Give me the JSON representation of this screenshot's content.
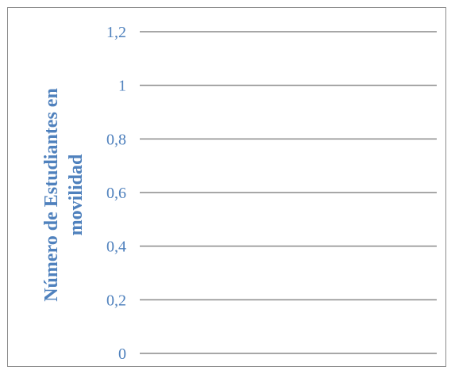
{
  "chart_data": {
    "type": "bar",
    "title": "",
    "xlabel": "",
    "ylabel_lines": [
      "Número de Estudiantes en",
      "movilidad"
    ],
    "ylim": [
      0,
      1.2
    ],
    "y_ticks": [
      0,
      0.2,
      0.4,
      0.6,
      0.8,
      1,
      1.2
    ],
    "y_tick_labels": [
      "0",
      "0,2",
      "0,4",
      "0,6",
      "0,8",
      "1",
      "1,2"
    ],
    "categories": [],
    "series": [],
    "grid": true,
    "legend": "none",
    "colors": {
      "text": "#4f81bd",
      "grid": "#8a8a8a",
      "frame": "#8c8c8c"
    }
  }
}
